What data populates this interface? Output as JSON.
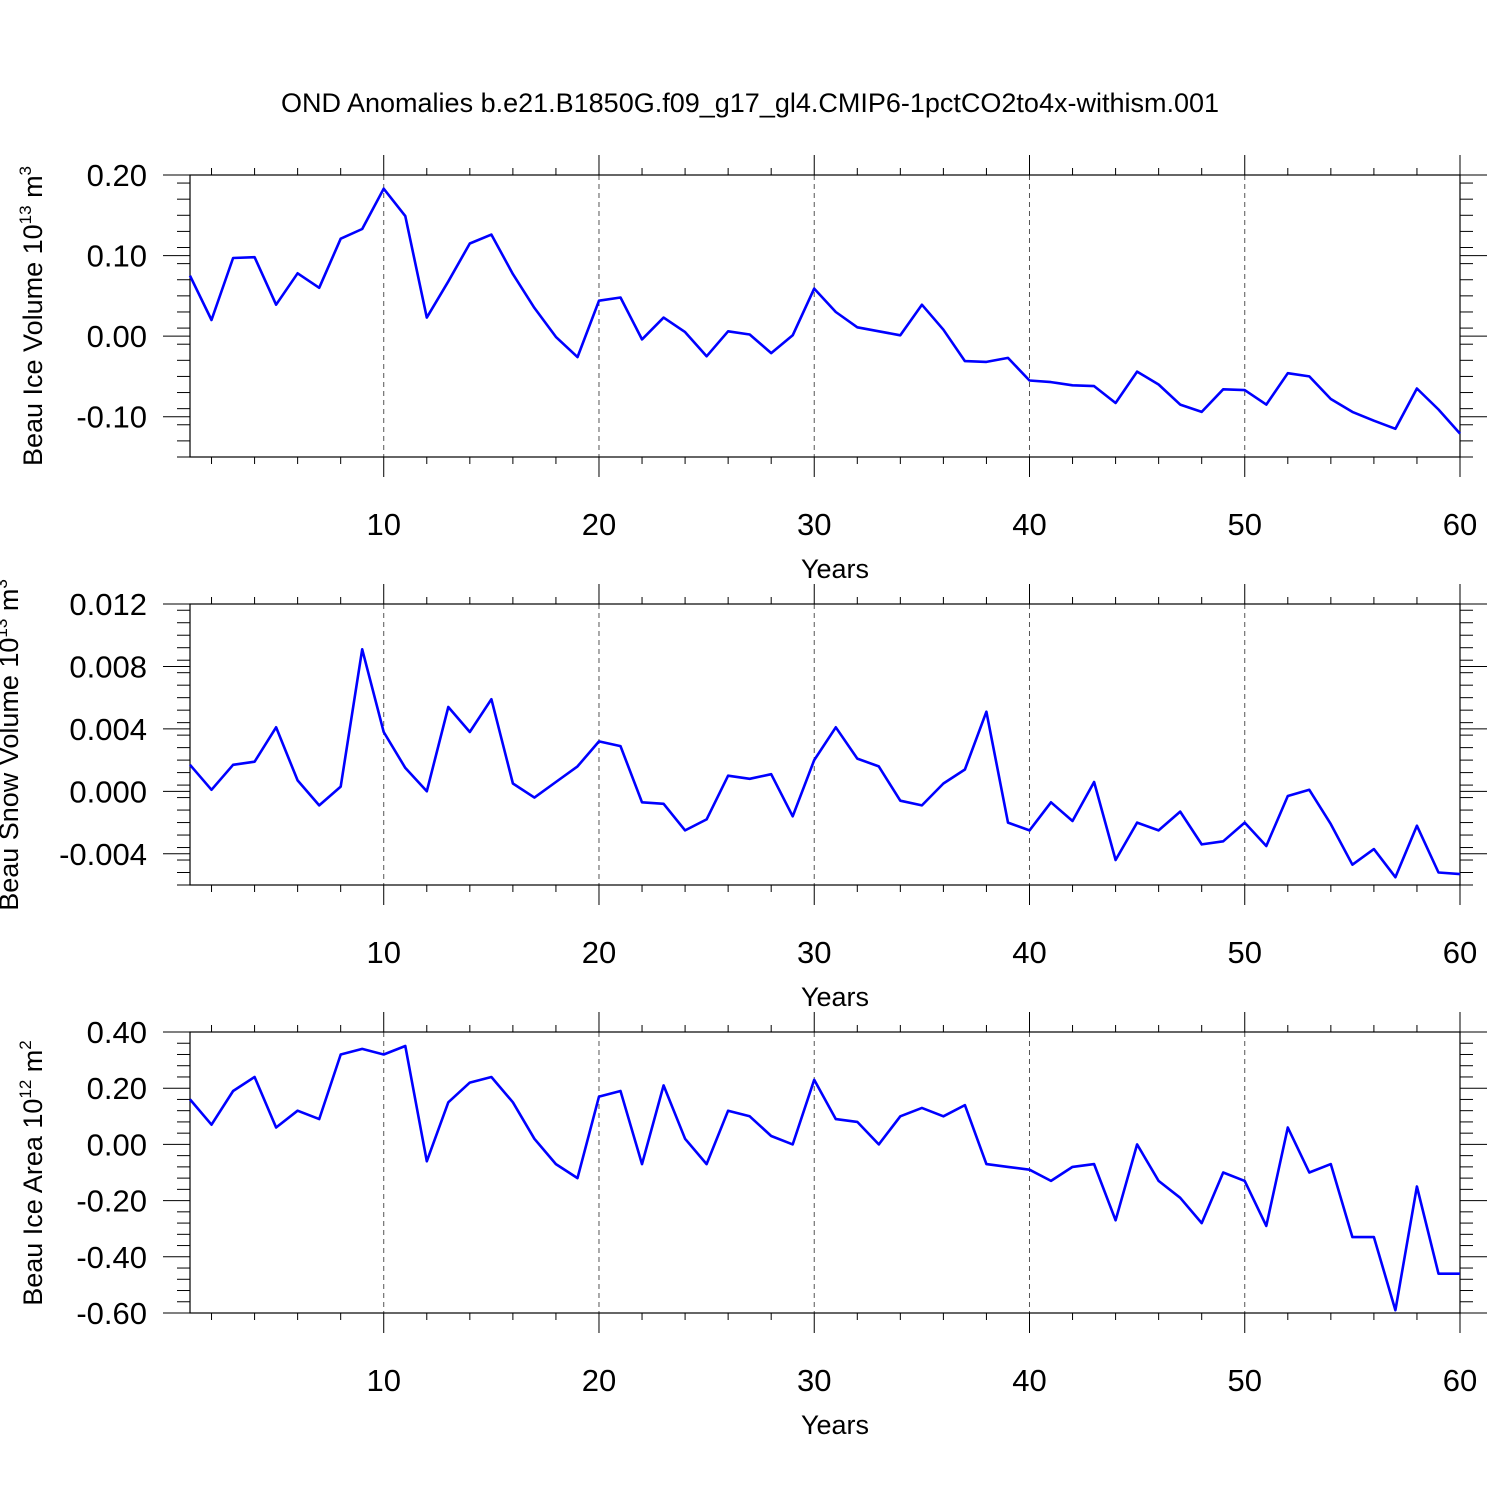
{
  "title": "OND Anomalies b.e21.B1850G.f09_g17_gl4.CMIP6-1pctCO2to4x-withism.001",
  "line_color": "#0000ff",
  "chart_data": [
    {
      "type": "line",
      "ylabel": "Beau Ice Volume 10",
      "ylabel_sup": "13",
      "ylabel_unit": " m",
      "ylabel_unit_sup": "3",
      "xlabel": "Years",
      "xlim": [
        1,
        60
      ],
      "ylim": [
        -0.15,
        0.2
      ],
      "yticks": [
        -0.1,
        0.0,
        0.1,
        0.2
      ],
      "ytick_labels": [
        "-0.10",
        "0.00",
        "0.10",
        "0.20"
      ],
      "xticks": [
        10,
        20,
        30,
        40,
        50,
        60
      ],
      "xtick_labels": [
        "10",
        "20",
        "30",
        "40",
        "50",
        "60"
      ],
      "x": [
        1,
        2,
        3,
        4,
        5,
        6,
        7,
        8,
        9,
        10,
        11,
        12,
        13,
        14,
        15,
        16,
        17,
        18,
        19,
        20,
        21,
        22,
        23,
        24,
        25,
        26,
        27,
        28,
        29,
        30,
        31,
        32,
        33,
        34,
        35,
        36,
        37,
        38,
        39,
        40,
        41,
        42,
        43,
        44,
        45,
        46,
        47,
        48,
        49,
        50,
        51,
        52,
        53,
        54,
        55,
        56,
        57,
        58,
        59,
        60
      ],
      "series": [
        {
          "values": [
            0.075,
            0.02,
            0.097,
            0.098,
            0.039,
            0.078,
            0.06,
            0.121,
            0.133,
            0.183,
            0.149,
            0.023,
            0.068,
            0.115,
            0.126,
            0.077,
            0.035,
            -0.001,
            -0.026,
            0.044,
            0.048,
            -0.004,
            0.023,
            0.005,
            -0.025,
            0.006,
            0.002,
            -0.021,
            0.001,
            0.059,
            0.03,
            0.011,
            0.006,
            0.001,
            0.039,
            0.008,
            -0.031,
            -0.032,
            -0.027,
            -0.055,
            -0.057,
            -0.061,
            -0.062,
            -0.083,
            -0.044,
            -0.06,
            -0.085,
            -0.094,
            -0.066,
            -0.067,
            -0.085,
            -0.046,
            -0.05,
            -0.078,
            -0.094,
            -0.105,
            -0.115,
            -0.065,
            -0.091,
            -0.121
          ]
        }
      ]
    },
    {
      "type": "line",
      "ylabel": "Beau Snow Volume 10",
      "ylabel_sup": "13",
      "ylabel_unit": " m",
      "ylabel_unit_sup": "3",
      "xlabel": "Years",
      "xlim": [
        1,
        60
      ],
      "ylim": [
        -0.006,
        0.012
      ],
      "yticks": [
        -0.004,
        0.0,
        0.004,
        0.008,
        0.012
      ],
      "ytick_labels": [
        "-0.004",
        "0.000",
        "0.004",
        "0.008",
        "0.012"
      ],
      "xticks": [
        10,
        20,
        30,
        40,
        50,
        60
      ],
      "xtick_labels": [
        "10",
        "20",
        "30",
        "40",
        "50",
        "60"
      ],
      "x": [
        1,
        2,
        3,
        4,
        5,
        6,
        7,
        8,
        9,
        10,
        11,
        12,
        13,
        14,
        15,
        16,
        17,
        18,
        19,
        20,
        21,
        22,
        23,
        24,
        25,
        26,
        27,
        28,
        29,
        30,
        31,
        32,
        33,
        34,
        35,
        36,
        37,
        38,
        39,
        40,
        41,
        42,
        43,
        44,
        45,
        46,
        47,
        48,
        49,
        50,
        51,
        52,
        53,
        54,
        55,
        56,
        57,
        58,
        59,
        60
      ],
      "series": [
        {
          "values": [
            0.0017,
            0.0001,
            0.0017,
            0.0019,
            0.0041,
            0.0007,
            -0.0009,
            0.0003,
            0.0091,
            0.0038,
            0.0015,
            0.0,
            0.0054,
            0.0038,
            0.0059,
            0.0005,
            -0.0004,
            0.0006,
            0.0016,
            0.0032,
            0.0029,
            -0.0007,
            -0.0008,
            -0.0025,
            -0.0018,
            0.001,
            0.0008,
            0.0011,
            -0.0016,
            0.002,
            0.0041,
            0.0021,
            0.0016,
            -0.0006,
            -0.0009,
            0.0005,
            0.0014,
            0.0051,
            -0.002,
            -0.0025,
            -0.0007,
            -0.0019,
            0.0006,
            -0.0044,
            -0.002,
            -0.0025,
            -0.0013,
            -0.0034,
            -0.0032,
            -0.002,
            -0.0035,
            -0.0003,
            0.0001,
            -0.0021,
            -0.0047,
            -0.0037,
            -0.0055,
            -0.0022,
            -0.0052,
            -0.0053
          ]
        }
      ]
    },
    {
      "type": "line",
      "ylabel": "Beau Ice Area 10",
      "ylabel_sup": "12",
      "ylabel_unit": " m",
      "ylabel_unit_sup": "2",
      "xlabel": "Years",
      "xlim": [
        1,
        60
      ],
      "ylim": [
        -0.6,
        0.4
      ],
      "yticks": [
        -0.6,
        -0.4,
        -0.2,
        0.0,
        0.2,
        0.4
      ],
      "ytick_labels": [
        "-0.60",
        "-0.40",
        "-0.20",
        "0.00",
        "0.20",
        "0.40"
      ],
      "xticks": [
        10,
        20,
        30,
        40,
        50,
        60
      ],
      "xtick_labels": [
        "10",
        "20",
        "30",
        "40",
        "50",
        "60"
      ],
      "x": [
        1,
        2,
        3,
        4,
        5,
        6,
        7,
        8,
        9,
        10,
        11,
        12,
        13,
        14,
        15,
        16,
        17,
        18,
        19,
        20,
        21,
        22,
        23,
        24,
        25,
        26,
        27,
        28,
        29,
        30,
        31,
        32,
        33,
        34,
        35,
        36,
        37,
        38,
        39,
        40,
        41,
        42,
        43,
        44,
        45,
        46,
        47,
        48,
        49,
        50,
        51,
        52,
        53,
        54,
        55,
        56,
        57,
        58,
        59,
        60
      ],
      "series": [
        {
          "values": [
            0.16,
            0.07,
            0.19,
            0.24,
            0.06,
            0.12,
            0.09,
            0.32,
            0.34,
            0.32,
            0.35,
            -0.06,
            0.15,
            0.22,
            0.24,
            0.15,
            0.02,
            -0.07,
            -0.12,
            0.17,
            0.19,
            -0.07,
            0.21,
            0.02,
            -0.07,
            0.12,
            0.1,
            0.03,
            0.0,
            0.23,
            0.09,
            0.08,
            0.0,
            0.1,
            0.13,
            0.1,
            0.14,
            -0.07,
            -0.08,
            -0.09,
            -0.13,
            -0.08,
            -0.07,
            -0.27,
            0.0,
            -0.13,
            -0.19,
            -0.28,
            -0.1,
            -0.13,
            -0.29,
            0.06,
            -0.1,
            -0.07,
            -0.33,
            -0.33,
            -0.59,
            -0.15,
            -0.46,
            -0.46
          ]
        }
      ]
    }
  ]
}
